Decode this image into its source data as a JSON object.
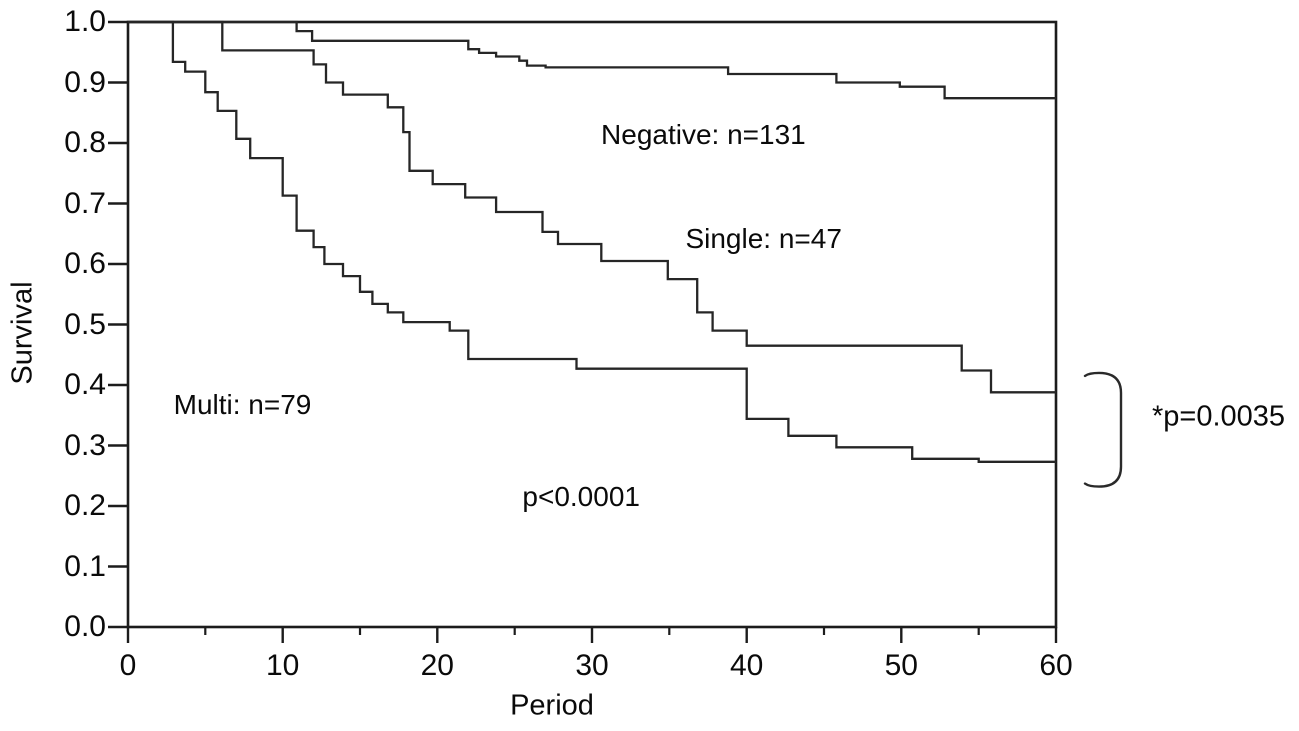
{
  "chart_data": {
    "type": "line",
    "subtype": "kaplan-meier-step-survival",
    "title": "",
    "xlabel": "Period",
    "ylabel": "Survival",
    "xlim": [
      0,
      60
    ],
    "ylim": [
      0.0,
      1.0
    ],
    "grid": false,
    "frame": "full-box",
    "x_major_ticks": [
      0,
      10,
      20,
      30,
      40,
      50,
      60
    ],
    "x_major_tick_labels": [
      "0",
      "10",
      "20",
      "30",
      "40",
      "50",
      "60"
    ],
    "x_minor_ticks": [
      5,
      15,
      25,
      35,
      45,
      55
    ],
    "y_ticks": [
      0.0,
      0.1,
      0.2,
      0.3,
      0.4,
      0.5,
      0.6,
      0.7,
      0.8,
      0.9,
      1.0
    ],
    "y_tick_labels": [
      "0.0",
      "0.1",
      "0.2",
      "0.3",
      "0.4",
      "0.5",
      "0.6",
      "0.7",
      "0.8",
      "0.9",
      "1.0"
    ],
    "line_color": "#1c1c1c",
    "series": [
      {
        "name": "Negative",
        "n": 131,
        "label": "Negative: n=131",
        "start": [
          0,
          1.0
        ],
        "steps": [
          [
            10.9,
            0.985
          ],
          [
            11.9,
            0.969
          ],
          [
            22.0,
            0.955
          ],
          [
            22.7,
            0.949
          ],
          [
            23.8,
            0.943
          ],
          [
            25.3,
            0.936
          ],
          [
            25.8,
            0.928
          ],
          [
            27.0,
            0.925
          ],
          [
            38.8,
            0.914
          ],
          [
            45.8,
            0.9
          ],
          [
            49.9,
            0.893
          ],
          [
            52.8,
            0.874
          ]
        ],
        "end_x": 60,
        "end_value": 0.874
      },
      {
        "name": "Single",
        "n": 47,
        "label": "Single: n=47",
        "start": [
          0,
          1.0
        ],
        "steps": [
          [
            6.1,
            0.953
          ],
          [
            12.0,
            0.93
          ],
          [
            12.8,
            0.9
          ],
          [
            13.9,
            0.88
          ],
          [
            16.8,
            0.859
          ],
          [
            17.8,
            0.818
          ],
          [
            18.2,
            0.754
          ],
          [
            19.7,
            0.732
          ],
          [
            21.8,
            0.71
          ],
          [
            23.8,
            0.686
          ],
          [
            26.8,
            0.653
          ],
          [
            27.8,
            0.633
          ],
          [
            30.6,
            0.605
          ],
          [
            34.9,
            0.575
          ],
          [
            36.8,
            0.52
          ],
          [
            37.8,
            0.49
          ],
          [
            40.0,
            0.465
          ],
          [
            53.9,
            0.424
          ],
          [
            55.8,
            0.388
          ]
        ],
        "end_x": 60,
        "end_value": 0.388
      },
      {
        "name": "Multi",
        "n": 79,
        "label": "Multi: n=79",
        "start": [
          0,
          1.0
        ],
        "steps": [
          [
            2.9,
            0.934
          ],
          [
            3.7,
            0.918
          ],
          [
            5.0,
            0.884
          ],
          [
            5.8,
            0.853
          ],
          [
            7.0,
            0.807
          ],
          [
            7.9,
            0.775
          ],
          [
            10.0,
            0.713
          ],
          [
            10.9,
            0.655
          ],
          [
            12.0,
            0.628
          ],
          [
            12.7,
            0.6
          ],
          [
            13.9,
            0.58
          ],
          [
            15.0,
            0.554
          ],
          [
            15.8,
            0.534
          ],
          [
            16.8,
            0.52
          ],
          [
            17.8,
            0.504
          ],
          [
            20.8,
            0.49
          ],
          [
            22.0,
            0.443
          ],
          [
            29.0,
            0.427
          ],
          [
            40.0,
            0.344
          ],
          [
            42.7,
            0.316
          ],
          [
            45.8,
            0.297
          ],
          [
            50.7,
            0.278
          ],
          [
            55.0,
            0.273
          ]
        ],
        "end_x": 60,
        "end_value": 0.273
      }
    ],
    "annotations": [
      {
        "id": "negative-label",
        "text": "Negative: n=131",
        "x": 37.2,
        "y": 0.813
      },
      {
        "id": "single-label",
        "text": "Single: n=47",
        "x": 41.1,
        "y": 0.641
      },
      {
        "id": "multi-label",
        "text": "Multi: n=79",
        "x": 7.4,
        "y": 0.367
      },
      {
        "id": "overall-p-value",
        "text": "p<0.0001",
        "x": 29.3,
        "y": 0.215
      }
    ],
    "outside_annotation": {
      "text": "*p=0.0035"
    },
    "bracket": {
      "marks_series": [
        "Single",
        "Multi"
      ],
      "y_top_value": 0.42,
      "y_bottom_value": 0.232
    }
  }
}
